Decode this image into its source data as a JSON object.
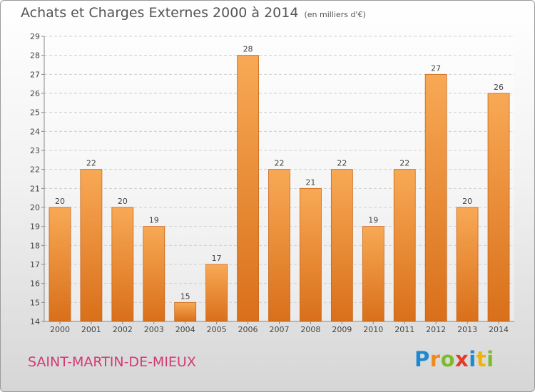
{
  "title": "Achats et Charges Externes 2000 à 2014",
  "unit": "(en milliers d'€)",
  "commune": "SAINT-MARTIN-DE-MIEUX",
  "logo": {
    "letters": [
      "P",
      "r",
      "o",
      "x",
      "i",
      "t",
      "i"
    ],
    "colors": [
      "#1e88d0",
      "#f08a1c",
      "#7dbb2c",
      "#e53a2a",
      "#1e88d0",
      "#f0b400",
      "#7dbb2c"
    ]
  },
  "colors": {
    "bar_top": "#f8a955",
    "bar_bottom": "#d96f1a",
    "bar_stroke": "#c8661a",
    "commune": "#d13a74",
    "grid": "#cfcfcf"
  },
  "chart_data": {
    "type": "bar",
    "categories": [
      "2000",
      "2001",
      "2002",
      "2003",
      "2004",
      "2005",
      "2006",
      "2007",
      "2008",
      "2009",
      "2010",
      "2011",
      "2012",
      "2013",
      "2014"
    ],
    "values": [
      20,
      22,
      20,
      19,
      15,
      17,
      28,
      22,
      21,
      22,
      19,
      22,
      27,
      20,
      26
    ],
    "ylim": [
      14,
      29
    ],
    "yticks": [
      14,
      15,
      16,
      17,
      18,
      19,
      20,
      21,
      22,
      23,
      24,
      25,
      26,
      27,
      28,
      29
    ],
    "grid": true,
    "data_labels": true
  }
}
